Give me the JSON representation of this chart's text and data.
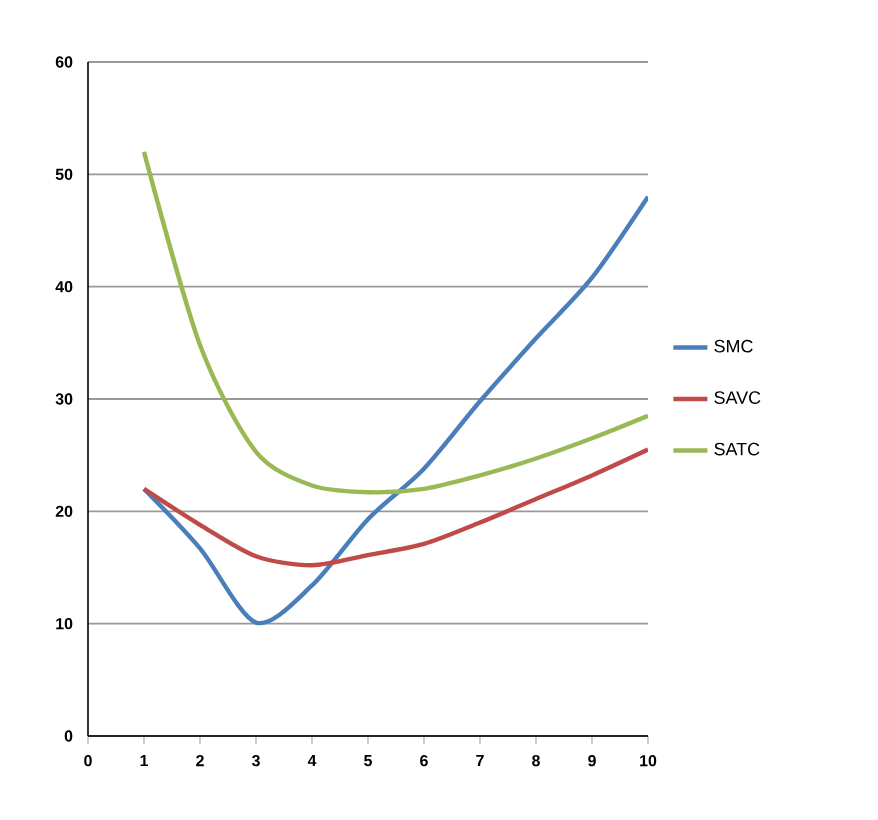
{
  "chart_data": {
    "type": "line",
    "x": [
      1,
      2,
      3,
      4,
      5,
      6,
      7,
      8,
      9,
      10
    ],
    "series": [
      {
        "name": "SMC",
        "color": "#4a7ebb",
        "values": [
          22,
          16.7,
          10.1,
          13.4,
          19.3,
          23.8,
          29.8,
          35.4,
          40.8,
          48
        ]
      },
      {
        "name": "SAVC",
        "color": "#be4b48",
        "values": [
          22,
          18.8,
          16,
          15.2,
          16.1,
          17.1,
          19,
          21.1,
          23.2,
          25.5
        ]
      },
      {
        "name": "SATC",
        "color": "#98b954",
        "values": [
          52,
          34.8,
          25.3,
          22.3,
          21.7,
          22,
          23.2,
          24.7,
          26.5,
          28.5
        ]
      }
    ],
    "xlim": [
      0,
      10
    ],
    "xticks": [
      0,
      1,
      2,
      3,
      4,
      5,
      6,
      7,
      8,
      9,
      10
    ],
    "ylim": [
      0,
      60
    ],
    "yticks": [
      0,
      10,
      20,
      30,
      40,
      50,
      60
    ],
    "grid": "y",
    "legend": "right",
    "marker": "none",
    "line_style": "solid"
  }
}
